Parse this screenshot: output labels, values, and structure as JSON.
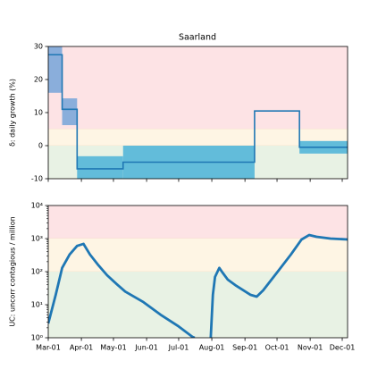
{
  "chart_data": [
    {
      "type": "step",
      "title": "Saarland",
      "ylabel": "δ: daily growth (%)",
      "xlim": [
        "Mar-01",
        "Dec-06"
      ],
      "ylim": [
        -10,
        30
      ],
      "yticks": [
        -10,
        0,
        10,
        20,
        30
      ],
      "zones": [
        {
          "from": 5,
          "to": 30,
          "color": "#fde3e5"
        },
        {
          "from": 0,
          "to": 5,
          "color": "#fef5e4"
        },
        {
          "from": -10,
          "to": 0,
          "color": "#e8f2e4"
        }
      ],
      "x": [
        "Mar-01",
        "Mar-14",
        "Mar-28",
        "May-10",
        "Sep-10",
        "Oct-22"
      ],
      "values": [
        27.5,
        11,
        -7,
        -5,
        10.5,
        -0.5
      ],
      "lower": [
        16,
        6.2,
        -10,
        -10,
        10.5,
        -2.4
      ],
      "upper": [
        30,
        14.3,
        -3.2,
        0,
        10.5,
        1.4
      ],
      "color": "#1f77b4",
      "band_colors": [
        "#8aaedb",
        "#8aaedb",
        "#62bcda",
        "#62bcda",
        "#62bcda",
        "#62bcda"
      ]
    },
    {
      "type": "line",
      "ylabel": "UC: uncorr contagious / million",
      "log_y": true,
      "xlim": [
        "Mar-01",
        "Dec-06"
      ],
      "xticks": [
        "Mar-01",
        "Apr-01",
        "May-01",
        "Jun-01",
        "Jul-01",
        "Aug-01",
        "Sep-01",
        "Oct-01",
        "Nov-01",
        "Dec-01"
      ],
      "ylim": [
        1,
        10000
      ],
      "yticks": [
        {
          "value": 1,
          "label": "10⁰"
        },
        {
          "value": 10,
          "label": "10¹"
        },
        {
          "value": 100,
          "label": "10²"
        },
        {
          "value": 1000,
          "label": "10³"
        },
        {
          "value": 10000,
          "label": "10⁴"
        }
      ],
      "zones": [
        {
          "from": 1000,
          "to": 10000,
          "color": "#fde3e5"
        },
        {
          "from": 100,
          "to": 1000,
          "color": "#fef5e4"
        },
        {
          "from": 1,
          "to": 100,
          "color": "#e8f2e4"
        }
      ],
      "x": [
        "Mar-01",
        "Mar-08",
        "Mar-14",
        "Mar-21",
        "Mar-28",
        "Apr-03",
        "Apr-09",
        "Apr-17",
        "Apr-25",
        "May-04",
        "May-12",
        "May-29",
        "Jun-14",
        "Jul-01",
        "Jul-14",
        "Jul-16",
        "Jul-23",
        "Jul-31",
        "Aug-02",
        "Aug-04",
        "Aug-08",
        "Aug-11",
        "Aug-16",
        "Aug-24",
        "Sep-06",
        "Sep-12",
        "Sep-18",
        "Oct-01",
        "Oct-14",
        "Oct-24",
        "Oct-31",
        "Nov-07",
        "Nov-20",
        "Dec-06"
      ],
      "values": [
        2.7,
        20,
        130,
        330,
        600,
        690,
        330,
        155,
        78,
        42,
        25,
        12,
        5,
        2.2,
        1.06,
        1,
        null,
        1,
        20,
        69,
        130,
        94,
        57,
        37,
        20,
        17.5,
        27,
        94,
        330,
        940,
        1280,
        1130,
        1000,
        940
      ],
      "color": "#1f77b4"
    }
  ]
}
